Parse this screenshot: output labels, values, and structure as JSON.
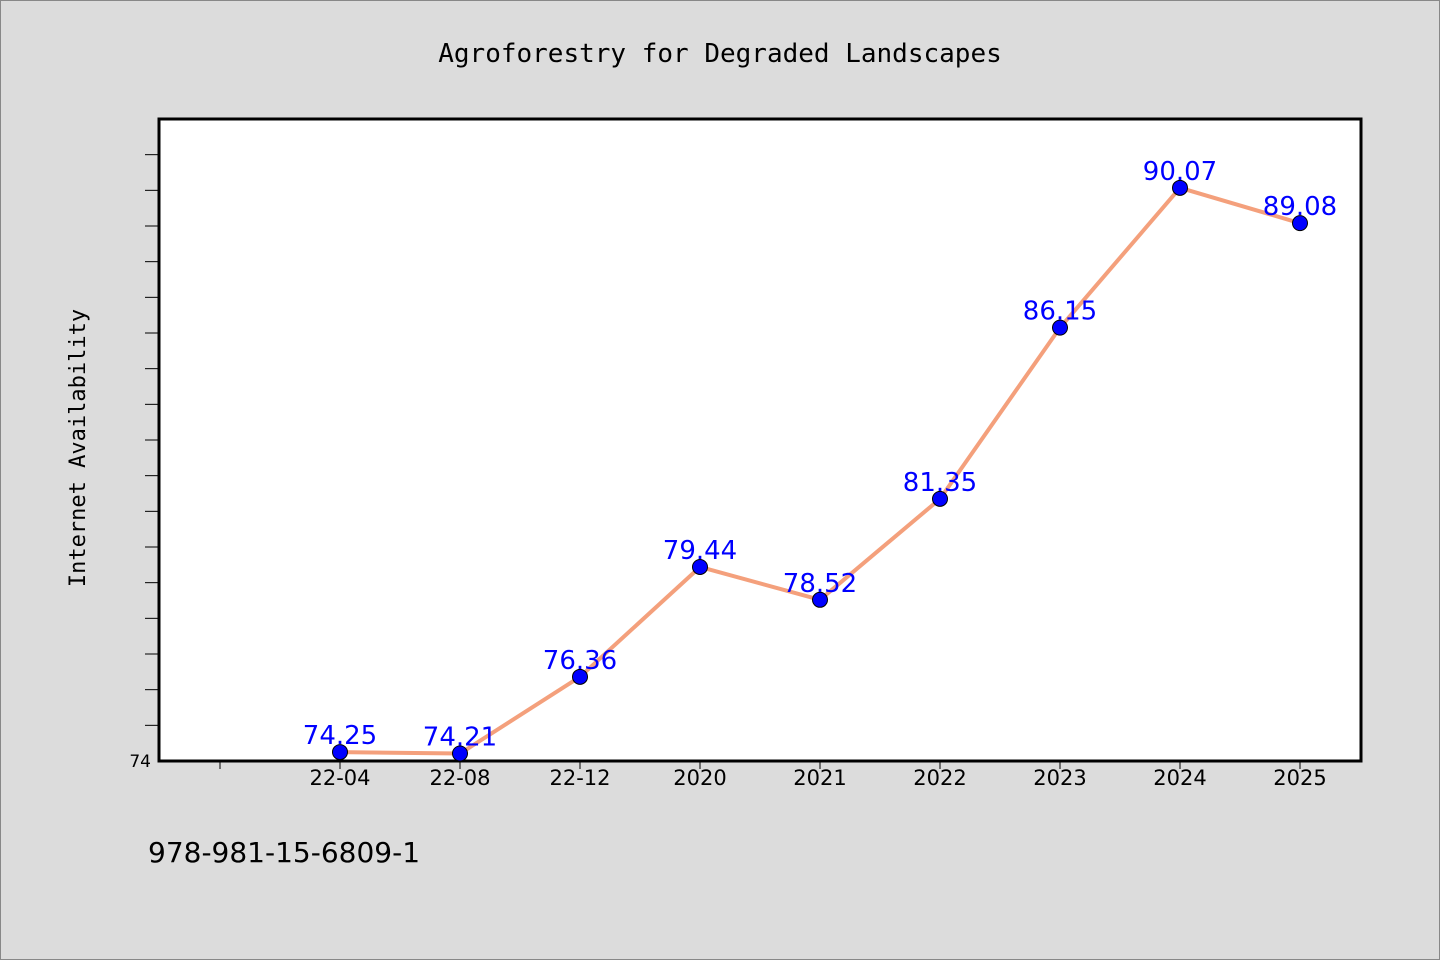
{
  "chart_data": {
    "type": "line",
    "title": "Agroforestry for Degraded Landscapes",
    "xlabel": "",
    "ylabel": "Internet Availability",
    "categories": [
      "22-04",
      "22-08",
      "22-12",
      "2020",
      "2021",
      "2022",
      "2023",
      "2024",
      "2025"
    ],
    "series": [
      {
        "values": [
          74.25,
          74.21,
          76.36,
          79.44,
          78.52,
          81.35,
          86.15,
          90.07,
          89.08
        ]
      }
    ],
    "data_labels": [
      "74.25",
      "74.21",
      "76.36",
      "79.44",
      "78.52",
      "81.35",
      "86.15",
      "90.07",
      "89.08"
    ],
    "ylim": [
      74,
      92
    ],
    "y_tick_labels": [
      "74"
    ],
    "grid": false,
    "legend": "none",
    "colors": {
      "background": "#dcdcdc",
      "plot_background": "#ffffff",
      "line": "#f4a07c",
      "marker": "#0000ff",
      "data_label": "#0000ff"
    }
  },
  "footer": {
    "isbn": "978-981-15-6809-1"
  }
}
